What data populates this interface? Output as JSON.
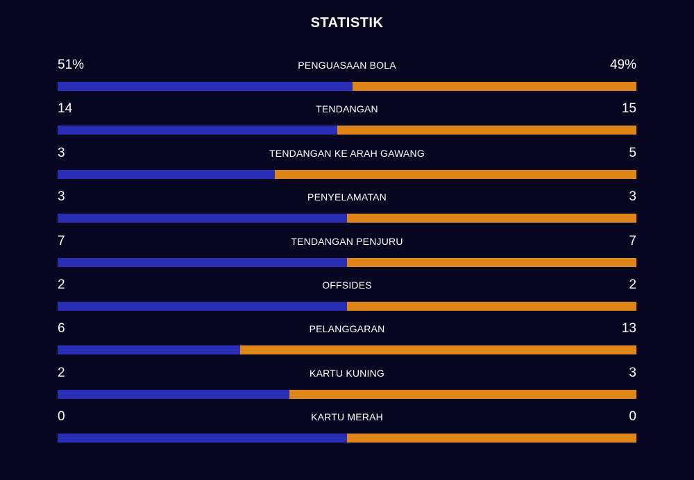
{
  "title": "STATISTIK",
  "colors": {
    "background": "#070721",
    "home": "#2A2DB5",
    "away": "#E08619"
  },
  "stats": [
    {
      "label": "PENGUASAAN BOLA",
      "home_display": "51%",
      "away_display": "49%",
      "home": 51,
      "away": 49
    },
    {
      "label": "TENDANGAN",
      "home_display": "14",
      "away_display": "15",
      "home": 14,
      "away": 15
    },
    {
      "label": "TENDANGAN KE ARAH GAWANG",
      "home_display": "3",
      "away_display": "5",
      "home": 3,
      "away": 5
    },
    {
      "label": "PENYELAMATAN",
      "home_display": "3",
      "away_display": "3",
      "home": 3,
      "away": 3
    },
    {
      "label": "TENDANGAN PENJURU",
      "home_display": "7",
      "away_display": "7",
      "home": 7,
      "away": 7
    },
    {
      "label": "OFFSIDES",
      "home_display": "2",
      "away_display": "2",
      "home": 2,
      "away": 2
    },
    {
      "label": "PELANGGARAN",
      "home_display": "6",
      "away_display": "13",
      "home": 6,
      "away": 13
    },
    {
      "label": "KARTU KUNING",
      "home_display": "2",
      "away_display": "3",
      "home": 2,
      "away": 3
    },
    {
      "label": "KARTU MERAH",
      "home_display": "0",
      "away_display": "0",
      "home": 0,
      "away": 0
    }
  ]
}
